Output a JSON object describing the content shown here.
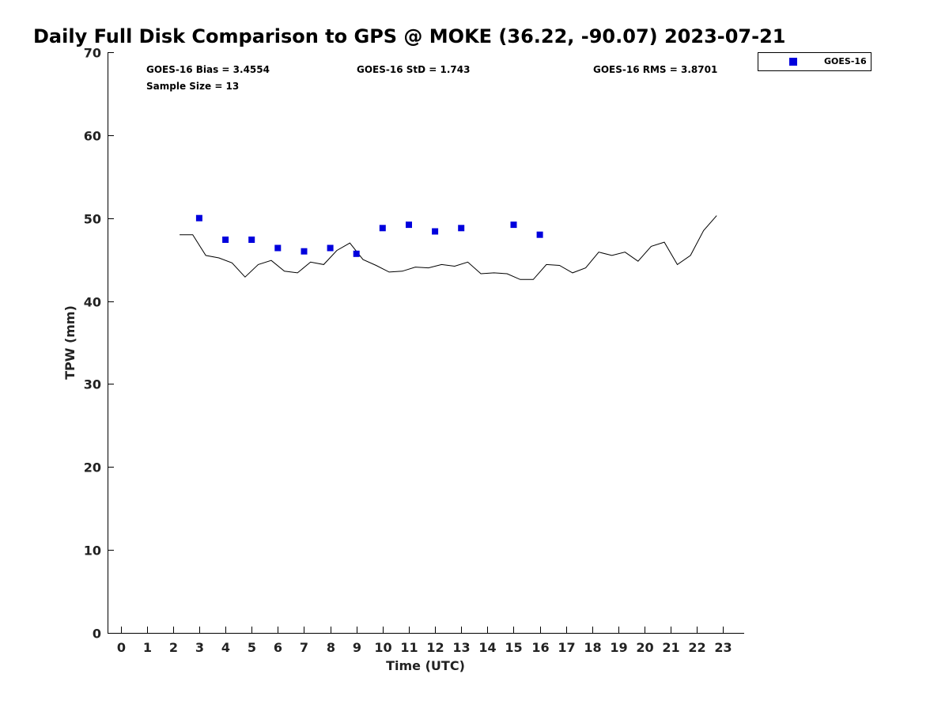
{
  "chart_data": {
    "type": "scatter",
    "title": "Daily Full Disk Comparison to GPS @ MOKE (36.22, -90.07) 2023-07-21",
    "xlabel": "Time (UTC)",
    "ylabel": "TPW (mm)",
    "xlim": [
      -0.5,
      23.8
    ],
    "ylim": [
      0,
      70
    ],
    "x_ticks": [
      0,
      1,
      2,
      3,
      4,
      5,
      6,
      7,
      8,
      9,
      10,
      11,
      12,
      13,
      14,
      15,
      16,
      17,
      18,
      19,
      20,
      21,
      22,
      23
    ],
    "y_ticks": [
      0,
      10,
      20,
      30,
      40,
      50,
      60,
      70
    ],
    "grid": false,
    "legend_position": "outside-top-right",
    "stats": {
      "bias": "GOES-16 Bias = 3.4554",
      "std": "GOES-16 StD = 1.743",
      "rms": "GOES-16 RMS = 3.8701",
      "sample": "Sample Size = 13"
    },
    "colors": {
      "goes": "#0000dd",
      "gps": "#000000"
    },
    "series": [
      {
        "name": "GOES-16",
        "type": "scatter",
        "x": [
          3,
          4,
          5,
          6,
          7,
          8,
          9,
          10,
          11,
          12,
          13,
          15,
          16
        ],
        "y": [
          50.0,
          47.4,
          47.4,
          46.4,
          46.0,
          46.4,
          45.7,
          48.8,
          49.2,
          48.4,
          48.8,
          49.2,
          48.0
        ]
      },
      {
        "type": "line",
        "x": [
          2.25,
          2.75,
          3.25,
          3.75,
          4.25,
          4.75,
          5.25,
          5.75,
          6.25,
          6.75,
          7.25,
          7.75,
          8.25,
          8.75,
          9.25,
          9.75,
          10.25,
          10.75,
          11.25,
          11.75,
          12.25,
          12.75,
          13.25,
          13.75,
          14.25,
          14.75,
          15.25,
          15.75,
          16.25,
          16.75,
          17.25,
          17.75,
          18.25,
          18.75,
          19.25,
          19.75,
          20.25,
          20.75,
          21.25,
          21.75,
          22.25,
          22.75
        ],
        "y": [
          48.0,
          48.0,
          45.5,
          45.2,
          44.6,
          42.9,
          44.4,
          44.9,
          43.6,
          43.4,
          44.7,
          44.4,
          46.1,
          47.0,
          45.0,
          44.3,
          43.5,
          43.6,
          44.1,
          44.0,
          44.4,
          44.2,
          44.7,
          43.3,
          43.4,
          43.3,
          42.6,
          42.6,
          44.4,
          44.3,
          43.4,
          44.0,
          45.9,
          45.5,
          45.9,
          44.8,
          46.6,
          47.1,
          44.4,
          45.5,
          48.5,
          50.3
        ]
      }
    ]
  }
}
